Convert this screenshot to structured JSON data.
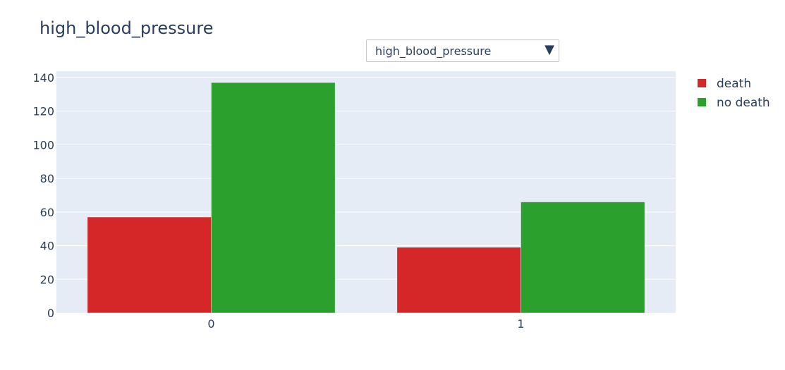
{
  "title": "high_blood_pressure",
  "dropdown": {
    "selected": "high_blood_pressure",
    "arrow_icon": "▼"
  },
  "chart_data": {
    "type": "bar",
    "title": "high_blood_pressure",
    "categories": [
      "0",
      "1"
    ],
    "series": [
      {
        "name": "death",
        "values": [
          57,
          39
        ],
        "color": "#d62728"
      },
      {
        "name": "no death",
        "values": [
          137,
          66
        ],
        "color": "#2ca02c"
      }
    ],
    "ylim": [
      0,
      140
    ],
    "yticks": [
      0,
      20,
      40,
      60,
      80,
      100,
      120,
      140
    ],
    "grid": true,
    "plot_background": "#e5ecf6",
    "legend_position": "top-right",
    "xlabel": "",
    "ylabel": ""
  }
}
